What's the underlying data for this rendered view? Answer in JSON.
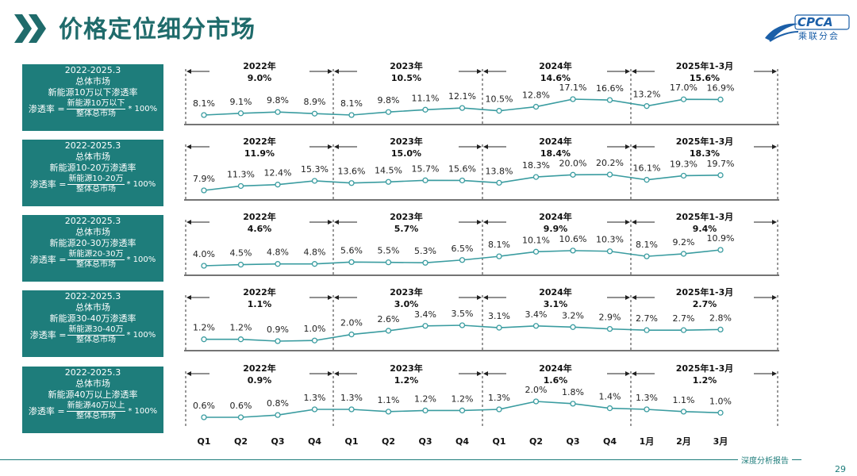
{
  "title": "价格定位细分市场",
  "logo": {
    "text": "CPCA",
    "sub": "乘联分会"
  },
  "footer": {
    "text": "深度分析报告",
    "page": "29"
  },
  "colors": {
    "accent": "#1e7d7b",
    "line": "#3a9ca0",
    "chevron": "#1f6b6b"
  },
  "chart_data": {
    "type": "line",
    "x_categories": [
      "Q1",
      "Q2",
      "Q3",
      "Q4",
      "Q1",
      "Q2",
      "Q3",
      "Q4",
      "Q1",
      "Q2",
      "Q3",
      "Q4",
      "1月",
      "2月",
      "3月"
    ],
    "periods": [
      "2022年",
      "2023年",
      "2024年",
      "2025年1-3月"
    ],
    "panels": [
      {
        "label_lines": [
          "2022-2025.3",
          "总体市场",
          "新能源10万以下渗透率"
        ],
        "formula": {
          "lhs": "渗透率 =",
          "num": "新能源10万以下",
          "den": "整体总市场",
          "rhs": "* 100%"
        },
        "period_totals": [
          "9.0%",
          "10.5%",
          "14.6%",
          "15.6%"
        ],
        "values": [
          8.1,
          9.1,
          9.8,
          8.9,
          8.1,
          9.8,
          11.1,
          12.1,
          10.5,
          12.8,
          17.1,
          16.6,
          13.2,
          17.0,
          16.9
        ],
        "labels": [
          "8.1%",
          "9.1%",
          "9.8%",
          "8.9%",
          "8.1%",
          "9.8%",
          "11.1%",
          "12.1%",
          "10.5%",
          "12.8%",
          "17.1%",
          "16.6%",
          "13.2%",
          "17.0%",
          "16.9%"
        ]
      },
      {
        "label_lines": [
          "2022-2025.3",
          "总体市场",
          "新能源10-20万渗透率"
        ],
        "formula": {
          "lhs": "渗透率 =",
          "num": "新能源10-20万",
          "den": "整体总市场",
          "rhs": "* 100%"
        },
        "period_totals": [
          "11.9%",
          "15.0%",
          "18.4%",
          "18.3%"
        ],
        "values": [
          7.9,
          11.3,
          12.4,
          15.3,
          13.6,
          14.5,
          15.7,
          15.6,
          13.8,
          18.3,
          20.0,
          20.2,
          16.1,
          19.3,
          19.7
        ],
        "labels": [
          "7.9%",
          "11.3%",
          "12.4%",
          "15.3%",
          "13.6%",
          "14.5%",
          "15.7%",
          "15.6%",
          "13.8%",
          "18.3%",
          "20.0%",
          "20.2%",
          "16.1%",
          "19.3%",
          "19.7%"
        ]
      },
      {
        "label_lines": [
          "2022-2025.3",
          "总体市场",
          "新能源20-30万渗透率"
        ],
        "formula": {
          "lhs": "渗透率 =",
          "num": "新能源20-30万",
          "den": "整体总市场",
          "rhs": "* 100%"
        },
        "period_totals": [
          "4.6%",
          "5.7%",
          "9.9%",
          "9.4%"
        ],
        "values": [
          4.0,
          4.5,
          4.8,
          4.8,
          5.6,
          5.5,
          5.3,
          6.5,
          8.1,
          10.1,
          10.6,
          10.3,
          8.1,
          9.2,
          10.9
        ],
        "labels": [
          "4.0%",
          "4.5%",
          "4.8%",
          "4.8%",
          "5.6%",
          "5.5%",
          "5.3%",
          "6.5%",
          "8.1%",
          "10.1%",
          "10.6%",
          "10.3%",
          "8.1%",
          "9.2%",
          "10.9%"
        ]
      },
      {
        "label_lines": [
          "2022-2025.3",
          "总体市场",
          "新能源30-40万渗透率"
        ],
        "formula": {
          "lhs": "渗透率 =",
          "num": "新能源30-40万",
          "den": "整体总市场",
          "rhs": "* 100%"
        },
        "period_totals": [
          "1.1%",
          "3.0%",
          "3.1%",
          "2.7%"
        ],
        "values": [
          1.2,
          1.2,
          0.9,
          1.0,
          2.0,
          2.6,
          3.4,
          3.5,
          3.1,
          3.4,
          3.2,
          2.9,
          2.7,
          2.7,
          2.8
        ],
        "labels": [
          "1.2%",
          "1.2%",
          "0.9%",
          "1.0%",
          "2.0%",
          "2.6%",
          "3.4%",
          "3.5%",
          "3.1%",
          "3.4%",
          "3.2%",
          "2.9%",
          "2.7%",
          "2.7%",
          "2.8%"
        ]
      },
      {
        "label_lines": [
          "2022-2025.3",
          "总体市场",
          "新能源40万以上渗透率"
        ],
        "formula": {
          "lhs": "渗透率 =",
          "num": "新能源40万以上",
          "den": "整体总市场",
          "rhs": "* 100%"
        },
        "period_totals": [
          "0.9%",
          "1.2%",
          "1.6%",
          "1.2%"
        ],
        "values": [
          0.6,
          0.6,
          0.8,
          1.3,
          1.3,
          1.1,
          1.2,
          1.2,
          1.3,
          2.0,
          1.8,
          1.4,
          1.3,
          1.1,
          1.0
        ],
        "labels": [
          "0.6%",
          "0.6%",
          "0.8%",
          "1.3%",
          "1.3%",
          "1.1%",
          "1.2%",
          "1.2%",
          "1.3%",
          "2.0%",
          "1.8%",
          "1.4%",
          "1.3%",
          "1.1%",
          "1.0%"
        ]
      }
    ]
  }
}
